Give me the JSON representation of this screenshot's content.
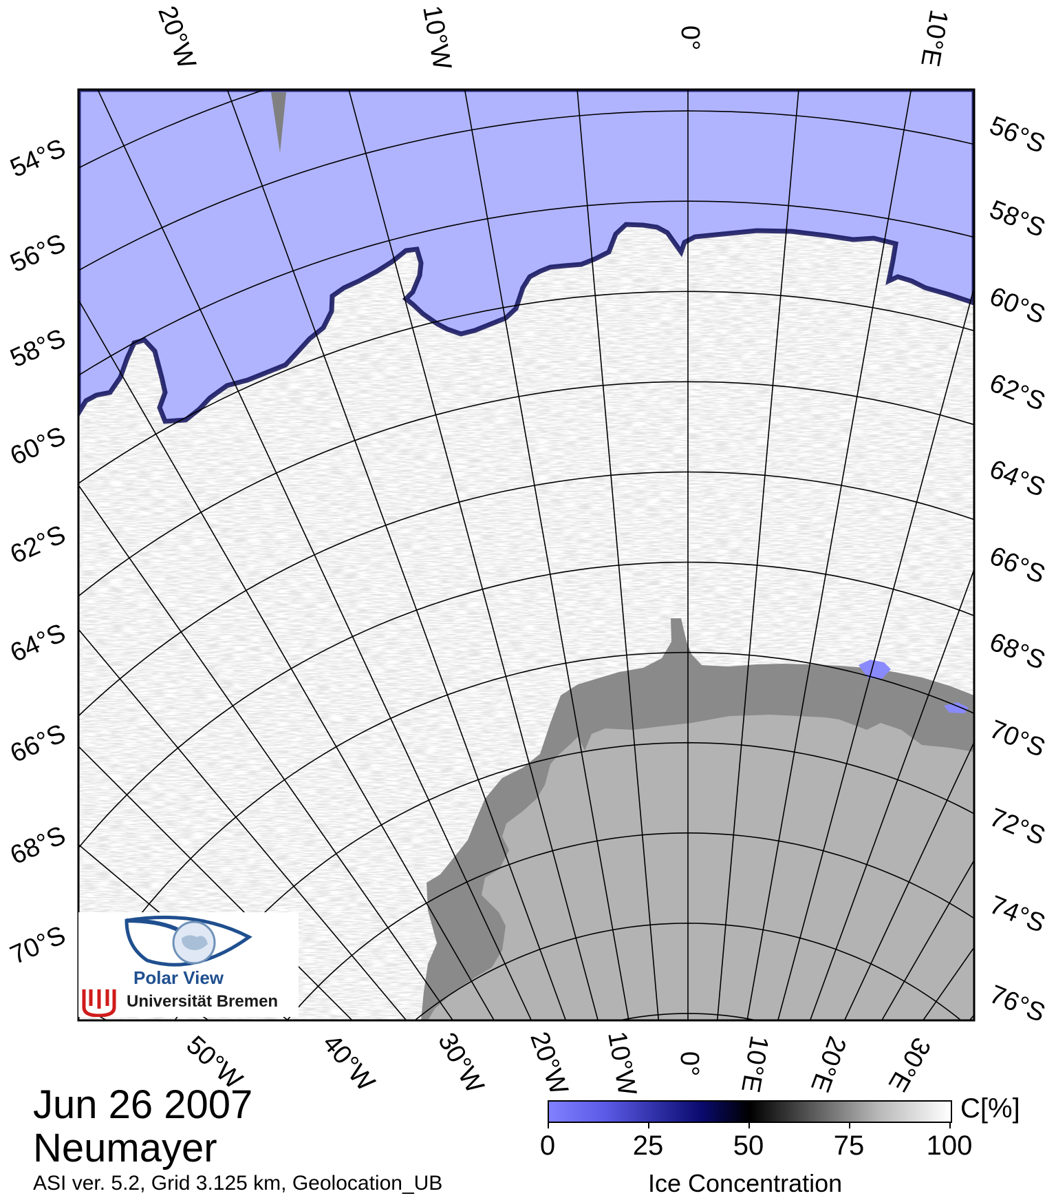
{
  "map": {
    "lat_labels_left": [
      "54°S",
      "56°S",
      "58°S",
      "60°S",
      "62°S",
      "64°S",
      "66°S",
      "68°S",
      "70°S"
    ],
    "lat_labels_right": [
      "56°S",
      "58°S",
      "60°S",
      "62°S",
      "64°S",
      "66°S",
      "68°S",
      "70°S",
      "72°S",
      "74°S",
      "76°S"
    ],
    "lon_labels_top": [
      "20°W",
      "10°W",
      "0°",
      "10°E"
    ],
    "lon_labels_bottom": [
      "50°W",
      "40°W",
      "30°W",
      "20°W",
      "10°W",
      "0°",
      "10°E",
      "20°E",
      "30°E"
    ],
    "colors": {
      "open_water": "#b0b4ff",
      "ice_edge": "#10105a",
      "ice": "#ffffff",
      "land_ice": "#b3b3b3",
      "shelf": "#8a8a8a",
      "grid": "#000000"
    }
  },
  "footer": {
    "date": "Jun 26 2007",
    "station": "Neumayer",
    "meta": "ASI ver. 5.2,  Grid 3.125 km, Geolocation_UB"
  },
  "colorbar": {
    "unit": "C[%]",
    "ticks": [
      "0",
      "25",
      "50",
      "75",
      "100"
    ],
    "title": "Ice Concentration"
  },
  "logo": {
    "name": "Polar View",
    "institution": "Universität Bremen"
  }
}
